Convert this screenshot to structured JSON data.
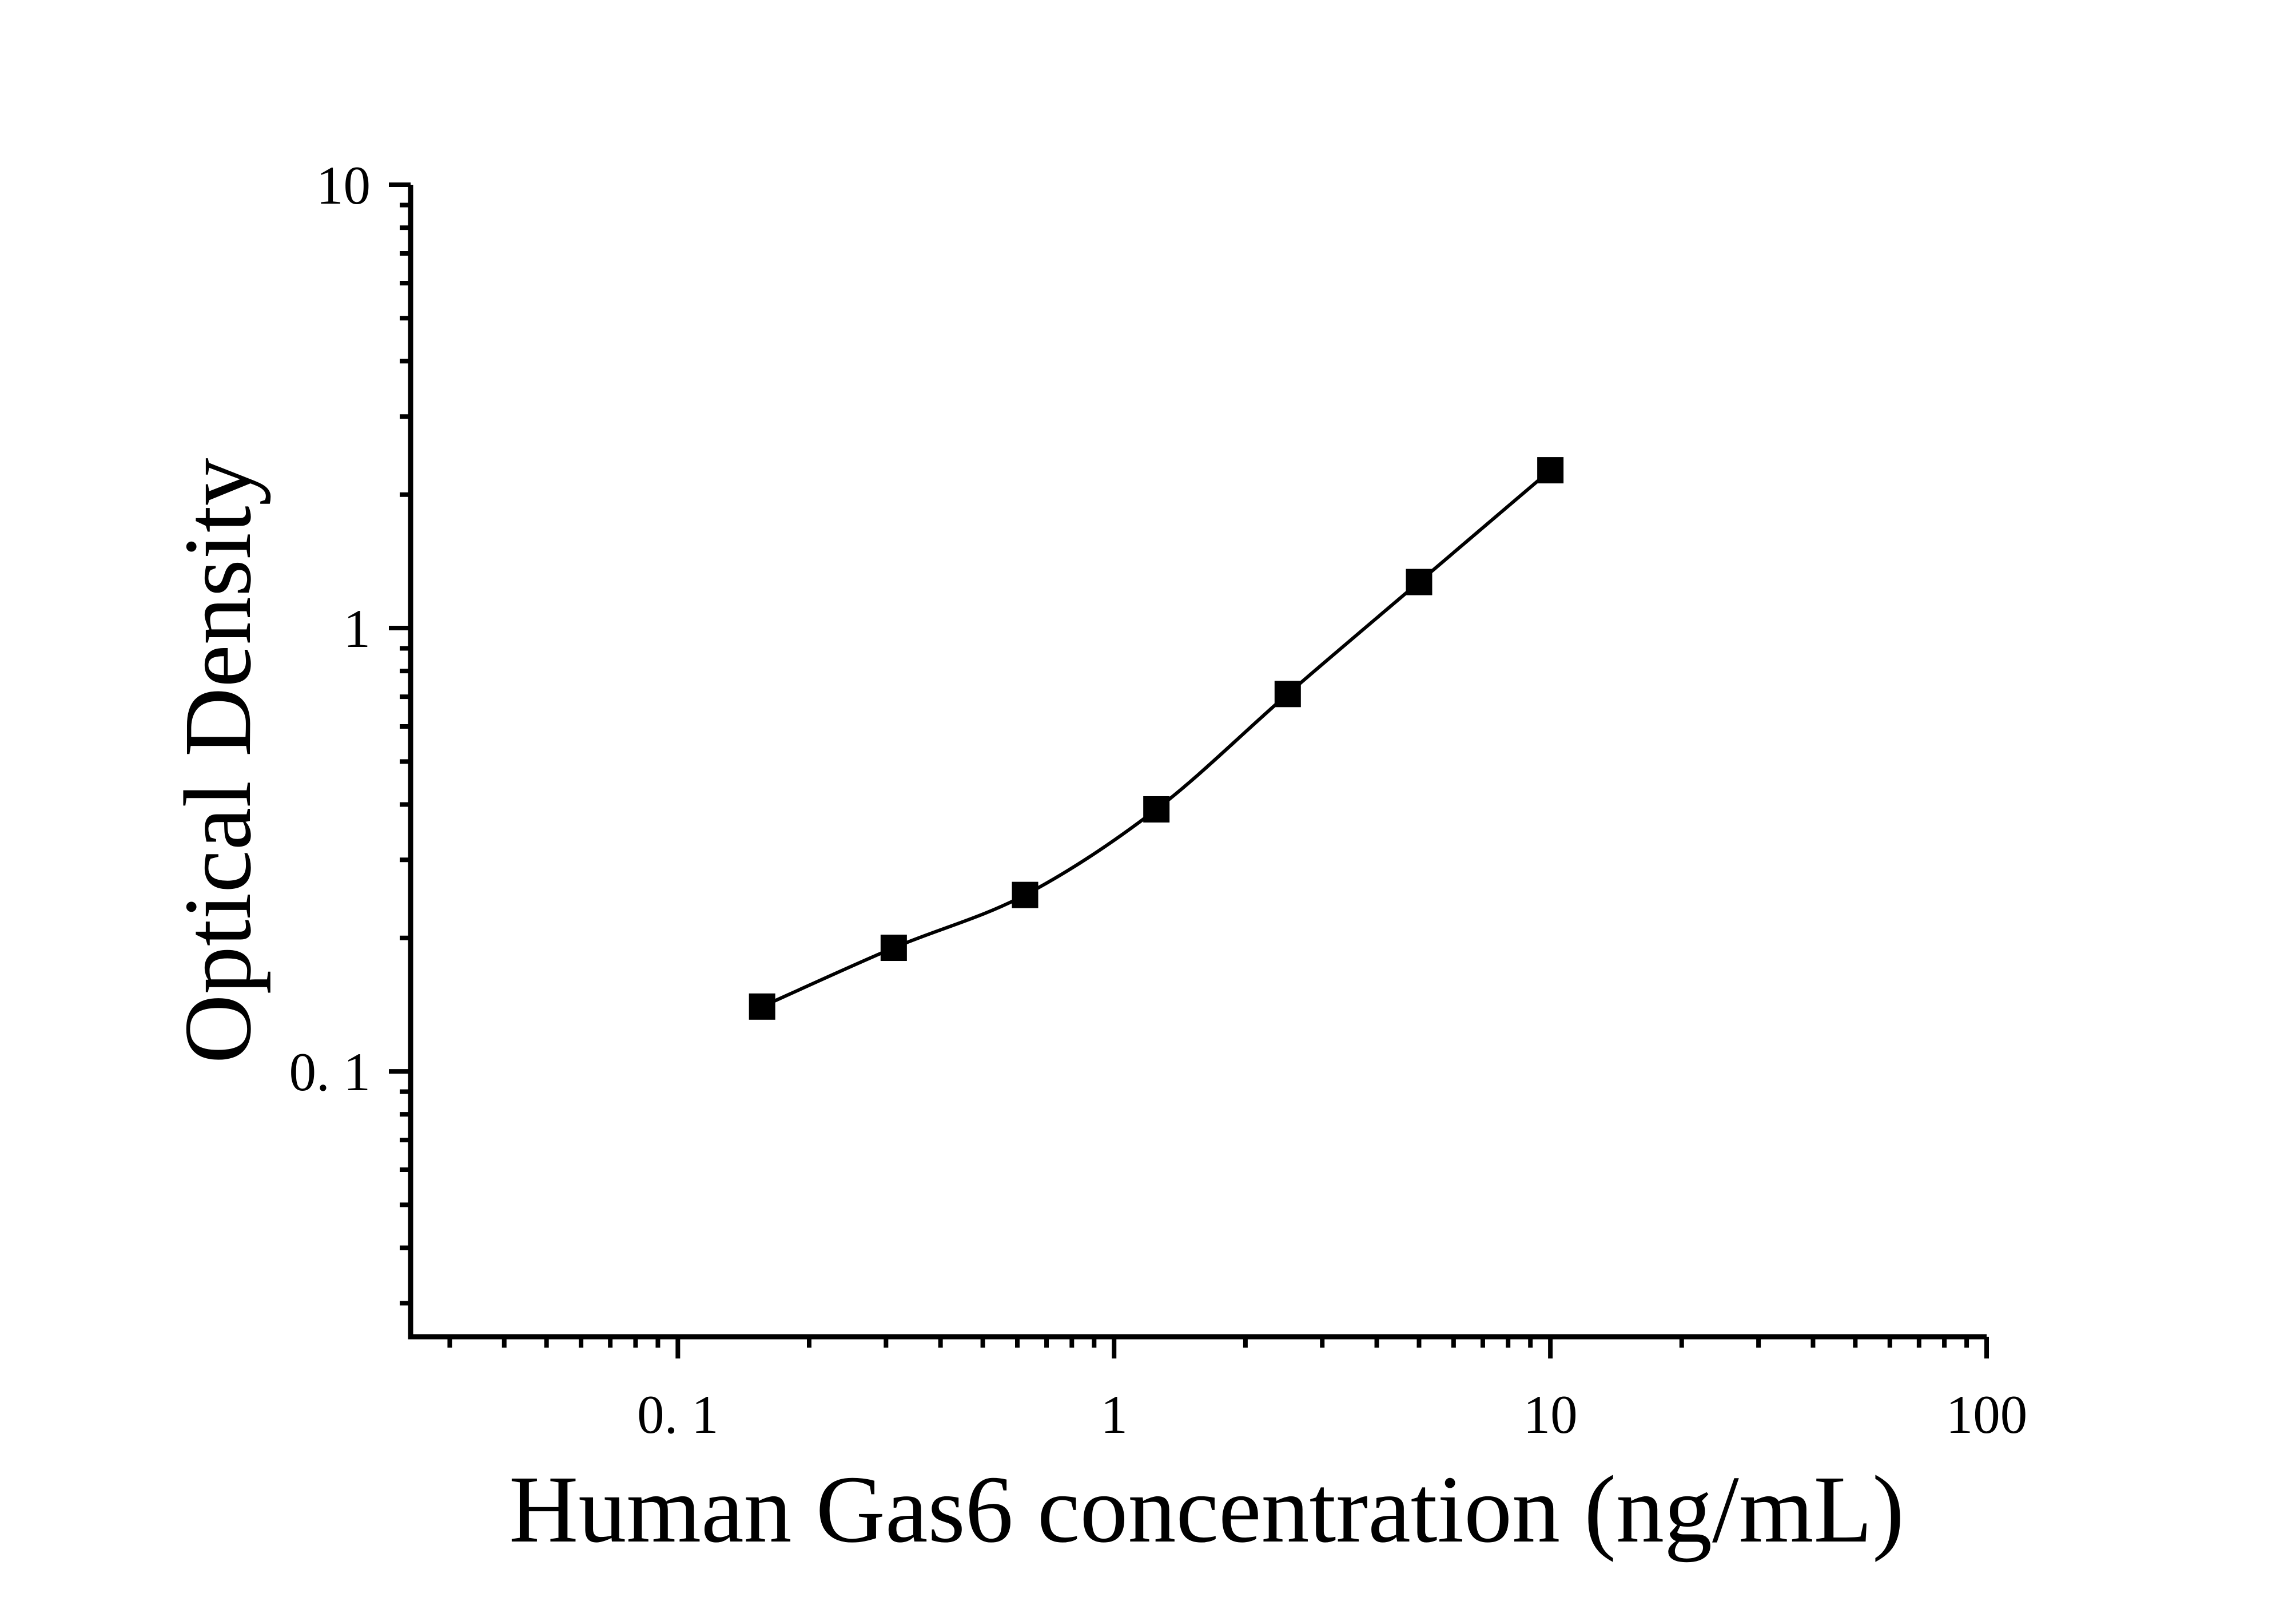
{
  "figure": {
    "background_color": "#ffffff",
    "ink_color": "#000000"
  },
  "chart_data": {
    "type": "line",
    "title": "",
    "xlabel": "Human Gas6 concentration (ng/mL)",
    "ylabel": "Optical Density",
    "x_scale": "log",
    "y_scale": "log",
    "x_range": [
      0.0244,
      100
    ],
    "y_range": [
      0.0252,
      10
    ],
    "grid": false,
    "legend": "none",
    "marker": "filled-square",
    "marker_color": "#000000",
    "line_color": "#000000",
    "x_major_ticks": [
      {
        "value": 0.1,
        "label": "0. 1"
      },
      {
        "value": 1,
        "label": "1"
      },
      {
        "value": 10,
        "label": "10"
      },
      {
        "value": 100,
        "label": "100"
      }
    ],
    "y_major_ticks": [
      {
        "value": 0.1,
        "label": "0. 1"
      },
      {
        "value": 1,
        "label": "1"
      },
      {
        "value": 10,
        "label": "10"
      }
    ],
    "series": [
      {
        "name": "standard-curve",
        "x": [
          0.156,
          0.3125,
          0.625,
          1.25,
          2.5,
          5,
          10
        ],
        "y": [
          0.14,
          0.19,
          0.25,
          0.39,
          0.71,
          1.27,
          2.27
        ]
      }
    ]
  }
}
